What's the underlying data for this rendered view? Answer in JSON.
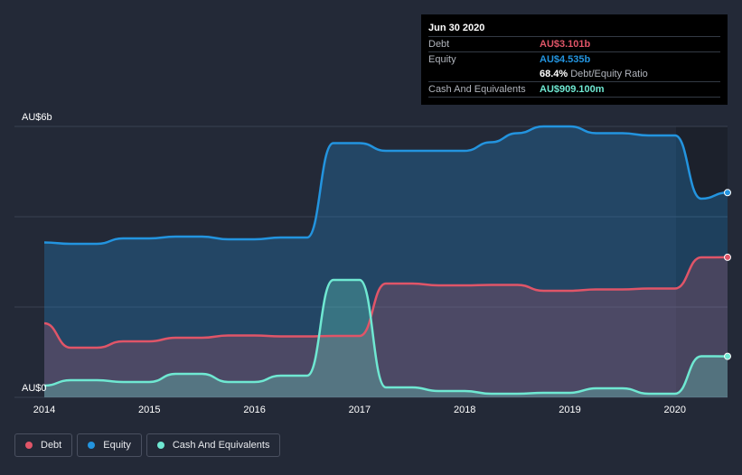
{
  "tooltip": {
    "date": "Jun 30 2020",
    "debt_label": "Debt",
    "debt_value": "AU$3.101b",
    "equity_label": "Equity",
    "equity_value": "AU$4.535b",
    "ratio_value": "68.4%",
    "ratio_label": "Debt/Equity Ratio",
    "cash_label": "Cash And Equivalents",
    "cash_value": "AU$909.100m"
  },
  "legend": {
    "debt": "Debt",
    "equity": "Equity",
    "cash": "Cash And Equivalents"
  },
  "colors": {
    "debt": "#e05568",
    "equity": "#2394df",
    "cash": "#6fe8d2",
    "background": "#232937"
  },
  "chart_data": {
    "type": "area",
    "y_unit": "AU$ billions",
    "ylim": [
      0,
      6
    ],
    "y_tick_labels": [
      {
        "value": 6,
        "label": "AU$6b"
      },
      {
        "value": 0,
        "label": "AU$0"
      }
    ],
    "xlim": [
      2014.0,
      2020.5
    ],
    "x_tick_labels": [
      "2014",
      "2015",
      "2016",
      "2017",
      "2018",
      "2019",
      "2020"
    ],
    "grid": true,
    "legend_position": "bottom-left",
    "series": [
      {
        "name": "Equity",
        "x": [
          2014.0,
          2014.25,
          2014.5,
          2014.75,
          2015.0,
          2015.25,
          2015.5,
          2015.75,
          2016.0,
          2016.25,
          2016.5,
          2016.75,
          2017.0,
          2017.25,
          2017.5,
          2017.75,
          2018.0,
          2018.25,
          2018.5,
          2018.75,
          2019.0,
          2019.25,
          2019.5,
          2019.75,
          2020.0,
          2020.25,
          2020.5
        ],
        "values": [
          3.43,
          3.4,
          3.4,
          3.52,
          3.52,
          3.56,
          3.56,
          3.5,
          3.5,
          3.54,
          3.54,
          5.63,
          5.63,
          5.46,
          5.46,
          5.46,
          5.46,
          5.65,
          5.85,
          6.0,
          6.0,
          5.85,
          5.85,
          5.8,
          5.8,
          4.4,
          4.535
        ]
      },
      {
        "name": "Debt",
        "x": [
          2014.0,
          2014.25,
          2014.5,
          2014.75,
          2015.0,
          2015.25,
          2015.5,
          2015.75,
          2016.0,
          2016.25,
          2016.5,
          2016.75,
          2017.0,
          2017.25,
          2017.5,
          2017.75,
          2018.0,
          2018.25,
          2018.5,
          2018.75,
          2019.0,
          2019.25,
          2019.5,
          2019.75,
          2020.0,
          2020.25,
          2020.5
        ],
        "values": [
          1.64,
          1.1,
          1.1,
          1.24,
          1.24,
          1.32,
          1.32,
          1.37,
          1.37,
          1.35,
          1.35,
          1.36,
          1.36,
          2.52,
          2.52,
          2.48,
          2.48,
          2.49,
          2.49,
          2.36,
          2.36,
          2.39,
          2.39,
          2.41,
          2.41,
          3.1,
          3.101
        ]
      },
      {
        "name": "Cash And Equivalents",
        "x": [
          2014.0,
          2014.25,
          2014.5,
          2014.75,
          2015.0,
          2015.25,
          2015.5,
          2015.75,
          2016.0,
          2016.25,
          2016.5,
          2016.75,
          2017.0,
          2017.25,
          2017.5,
          2017.75,
          2018.0,
          2018.25,
          2018.5,
          2018.75,
          2019.0,
          2019.25,
          2019.5,
          2019.75,
          2020.0,
          2020.25,
          2020.5
        ],
        "values": [
          0.26,
          0.38,
          0.38,
          0.34,
          0.34,
          0.52,
          0.52,
          0.34,
          0.34,
          0.48,
          0.48,
          2.6,
          2.6,
          0.22,
          0.22,
          0.14,
          0.14,
          0.08,
          0.08,
          0.1,
          0.1,
          0.2,
          0.2,
          0.08,
          0.08,
          0.91,
          0.909
        ]
      }
    ]
  }
}
